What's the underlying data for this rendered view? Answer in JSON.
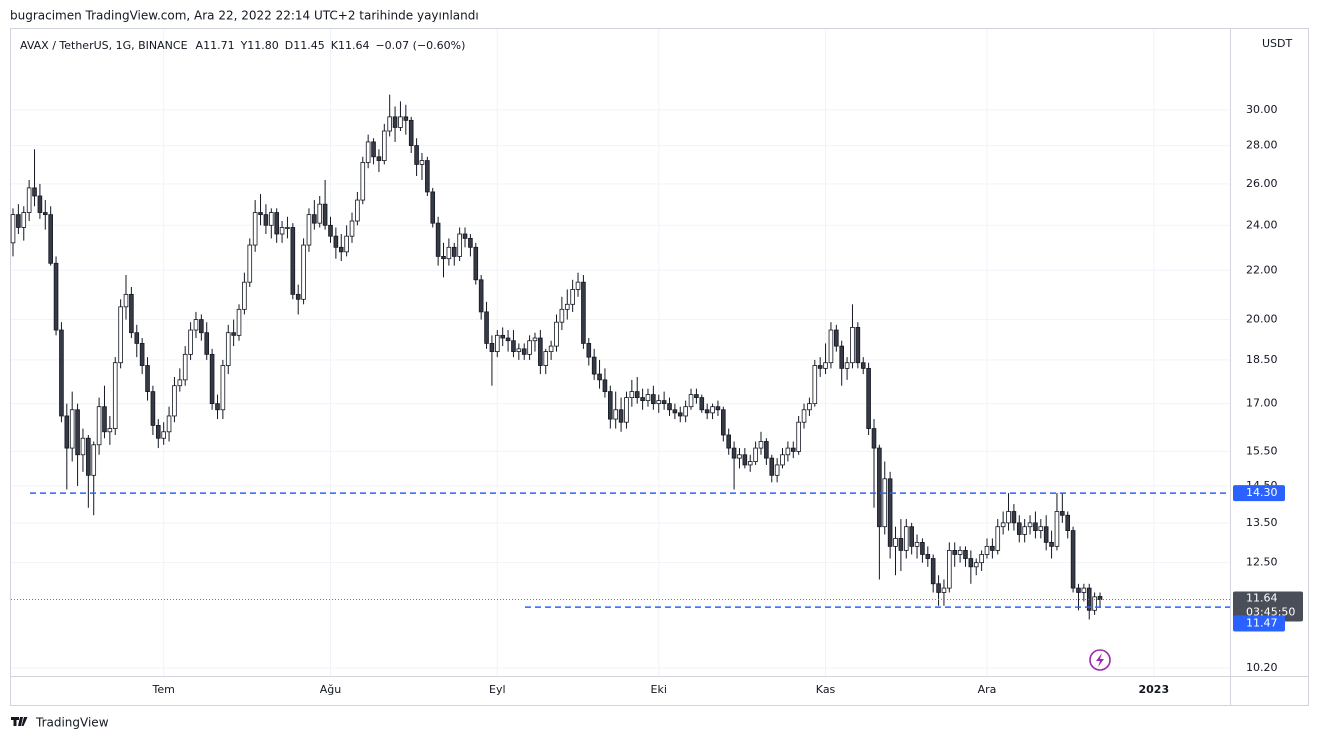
{
  "header": {
    "publisher": "bugracimen TradingView.com, Ara 22, 2022 22:14 UTC+2 tarihinde yayınlandı"
  },
  "footer": {
    "brand": "TradingView"
  },
  "chart_data": {
    "type": "candlestick",
    "legend": [
      "AVAX / TetherUS, 1G, BINANCE",
      "A11.71",
      "Y11.80",
      "D11.45",
      "K11.64",
      "−0.07 (−0.60%)"
    ],
    "y_unit": "USDT",
    "log_scale": true,
    "grid": true,
    "up_color": "#ffffff",
    "down_color": "#363a45",
    "border_color": "#131722",
    "ylim": [
      10.04,
      35.08
    ],
    "yticks": [
      {
        "value": 30,
        "label": "30.00"
      },
      {
        "value": 28,
        "label": "28.00"
      },
      {
        "value": 26,
        "label": "26.00"
      },
      {
        "value": 24,
        "label": "24.00"
      },
      {
        "value": 22,
        "label": "22.00"
      },
      {
        "value": 20,
        "label": "20.00"
      },
      {
        "value": 18.5,
        "label": "18.50"
      },
      {
        "value": 17,
        "label": "17.00"
      },
      {
        "value": 15.5,
        "label": "15.50"
      },
      {
        "value": 14.5,
        "label": "14.50"
      },
      {
        "value": 13.5,
        "label": "13.50"
      },
      {
        "value": 12.5,
        "label": "12.50"
      },
      {
        "value": 10.2,
        "label": "10.20"
      }
    ],
    "xticks": [
      {
        "value": 28,
        "label": "Tem"
      },
      {
        "value": 59,
        "label": "Ağu"
      },
      {
        "value": 90,
        "label": "Eyl"
      },
      {
        "value": 120,
        "label": "Eki"
      },
      {
        "value": 151,
        "label": "Kas"
      },
      {
        "value": 181,
        "label": "Ara"
      },
      {
        "value": 212,
        "label": "2023",
        "bold": true
      }
    ],
    "levels": [
      {
        "value": 14.3,
        "label": "14.30",
        "color": "#2962ff"
      },
      {
        "value": 11.47,
        "label": "11.47",
        "color": "#2962ff"
      }
    ],
    "last_price": {
      "value": 11.64,
      "label": "11.64",
      "countdown": "03:45:50"
    },
    "ohlc": [
      [
        23.2,
        24.8,
        22.6,
        24.5
      ],
      [
        24.5,
        25.0,
        23.6,
        23.9
      ],
      [
        23.9,
        24.9,
        23.3,
        24.6
      ],
      [
        24.6,
        26.2,
        24.2,
        25.8
      ],
      [
        25.8,
        27.8,
        24.9,
        25.4
      ],
      [
        25.4,
        26.0,
        24.3,
        24.6
      ],
      [
        24.6,
        25.2,
        23.8,
        24.5
      ],
      [
        24.5,
        24.9,
        22.2,
        22.3
      ],
      [
        22.3,
        22.6,
        19.4,
        19.6
      ],
      [
        19.6,
        19.9,
        16.4,
        16.6
      ],
      [
        16.6,
        17.0,
        14.4,
        15.6
      ],
      [
        15.6,
        17.4,
        15.2,
        16.8
      ],
      [
        16.8,
        17.0,
        14.5,
        15.4
      ],
      [
        15.4,
        16.2,
        14.9,
        15.9
      ],
      [
        15.9,
        16.0,
        13.9,
        14.8
      ],
      [
        14.8,
        15.8,
        13.7,
        15.7
      ],
      [
        15.7,
        17.2,
        15.4,
        16.9
      ],
      [
        16.9,
        17.6,
        15.9,
        16.1
      ],
      [
        16.1,
        16.6,
        15.7,
        16.2
      ],
      [
        16.2,
        18.6,
        16.0,
        18.4
      ],
      [
        18.4,
        20.8,
        18.2,
        20.5
      ],
      [
        20.5,
        21.8,
        20.0,
        21.0
      ],
      [
        21.0,
        21.3,
        19.3,
        19.5
      ],
      [
        19.5,
        19.8,
        18.6,
        19.1
      ],
      [
        19.1,
        19.3,
        18.0,
        18.3
      ],
      [
        18.3,
        18.6,
        17.1,
        17.4
      ],
      [
        17.4,
        17.6,
        16.0,
        16.3
      ],
      [
        16.3,
        16.5,
        15.6,
        15.9
      ],
      [
        15.9,
        16.4,
        15.7,
        16.1
      ],
      [
        16.1,
        16.9,
        15.8,
        16.6
      ],
      [
        16.6,
        17.9,
        16.4,
        17.6
      ],
      [
        17.6,
        18.2,
        17.4,
        17.8
      ],
      [
        17.8,
        19.0,
        17.6,
        18.7
      ],
      [
        18.7,
        19.9,
        18.5,
        19.6
      ],
      [
        19.6,
        20.3,
        19.3,
        20.0
      ],
      [
        20.0,
        20.2,
        19.2,
        19.5
      ],
      [
        19.5,
        19.9,
        18.5,
        18.7
      ],
      [
        18.7,
        18.9,
        16.8,
        17.0
      ],
      [
        17.0,
        17.3,
        16.5,
        16.8
      ],
      [
        16.8,
        18.5,
        16.5,
        18.3
      ],
      [
        18.3,
        19.8,
        18.0,
        19.5
      ],
      [
        19.5,
        20.0,
        19.0,
        19.4
      ],
      [
        19.4,
        20.6,
        19.2,
        20.4
      ],
      [
        20.4,
        21.9,
        20.2,
        21.5
      ],
      [
        21.5,
        23.4,
        21.3,
        23.1
      ],
      [
        23.1,
        25.2,
        22.8,
        24.6
      ],
      [
        24.6,
        25.5,
        24.0,
        24.5
      ],
      [
        24.5,
        25.0,
        23.6,
        24.0
      ],
      [
        24.0,
        24.8,
        23.4,
        24.6
      ],
      [
        24.6,
        24.8,
        23.2,
        23.6
      ],
      [
        23.6,
        24.2,
        23.2,
        23.9
      ],
      [
        23.9,
        24.4,
        23.4,
        23.9
      ],
      [
        23.9,
        24.1,
        20.8,
        21.0
      ],
      [
        21.0,
        21.4,
        20.2,
        20.8
      ],
      [
        20.8,
        23.4,
        20.6,
        23.1
      ],
      [
        23.1,
        24.8,
        22.8,
        24.5
      ],
      [
        24.5,
        25.2,
        23.8,
        24.1
      ],
      [
        24.1,
        25.4,
        23.9,
        25.0
      ],
      [
        25.0,
        26.2,
        23.8,
        24.0
      ],
      [
        24.0,
        24.4,
        23.2,
        23.5
      ],
      [
        23.5,
        23.9,
        22.5,
        23.0
      ],
      [
        23.0,
        23.6,
        22.4,
        22.8
      ],
      [
        22.8,
        24.0,
        22.6,
        23.5
      ],
      [
        23.5,
        24.6,
        23.2,
        24.2
      ],
      [
        24.2,
        25.6,
        24.0,
        25.2
      ],
      [
        25.2,
        27.4,
        25.0,
        27.1
      ],
      [
        27.1,
        28.6,
        26.8,
        28.2
      ],
      [
        28.2,
        28.4,
        27.0,
        27.4
      ],
      [
        27.4,
        27.8,
        26.6,
        27.2
      ],
      [
        27.2,
        29.2,
        27.0,
        28.8
      ],
      [
        28.8,
        30.9,
        28.5,
        29.6
      ],
      [
        29.6,
        30.2,
        28.2,
        29.0
      ],
      [
        29.0,
        30.5,
        28.8,
        29.6
      ],
      [
        29.6,
        30.3,
        28.6,
        29.4
      ],
      [
        29.4,
        29.6,
        27.6,
        28.0
      ],
      [
        28.0,
        28.4,
        26.4,
        27.0
      ],
      [
        27.0,
        27.6,
        26.2,
        27.2
      ],
      [
        27.2,
        27.4,
        25.4,
        25.6
      ],
      [
        25.6,
        25.8,
        23.9,
        24.1
      ],
      [
        24.1,
        24.4,
        22.2,
        22.6
      ],
      [
        22.6,
        23.2,
        21.7,
        22.5
      ],
      [
        22.5,
        23.4,
        22.2,
        23.0
      ],
      [
        23.0,
        23.2,
        22.2,
        22.6
      ],
      [
        22.6,
        23.9,
        22.4,
        23.6
      ],
      [
        23.6,
        23.9,
        23.0,
        23.4
      ],
      [
        23.4,
        23.6,
        22.6,
        23.0
      ],
      [
        23.0,
        23.2,
        21.4,
        21.6
      ],
      [
        21.6,
        21.8,
        20.0,
        20.3
      ],
      [
        20.3,
        20.7,
        18.9,
        19.1
      ],
      [
        19.1,
        19.4,
        17.6,
        18.8
      ],
      [
        18.8,
        19.6,
        18.6,
        19.4
      ],
      [
        19.4,
        19.7,
        19.0,
        19.3
      ],
      [
        19.3,
        19.6,
        18.8,
        19.2
      ],
      [
        19.2,
        19.6,
        18.6,
        18.8
      ],
      [
        18.8,
        19.1,
        18.5,
        18.9
      ],
      [
        18.9,
        19.1,
        18.5,
        18.7
      ],
      [
        18.7,
        19.4,
        18.5,
        19.2
      ],
      [
        19.2,
        19.5,
        18.8,
        19.3
      ],
      [
        19.3,
        19.6,
        18.0,
        18.3
      ],
      [
        18.3,
        18.9,
        18.0,
        18.8
      ],
      [
        18.8,
        19.2,
        18.5,
        19.0
      ],
      [
        19.0,
        20.2,
        18.8,
        19.9
      ],
      [
        19.9,
        20.9,
        19.6,
        20.4
      ],
      [
        20.4,
        21.2,
        20.0,
        20.6
      ],
      [
        20.6,
        21.6,
        20.3,
        21.2
      ],
      [
        21.2,
        21.9,
        20.9,
        21.5
      ],
      [
        21.5,
        21.8,
        18.9,
        19.1
      ],
      [
        19.1,
        19.3,
        18.3,
        18.6
      ],
      [
        18.6,
        18.9,
        17.8,
        18.0
      ],
      [
        18.0,
        18.5,
        17.5,
        17.8
      ],
      [
        17.8,
        18.2,
        17.2,
        17.4
      ],
      [
        17.4,
        17.6,
        16.2,
        16.5
      ],
      [
        16.5,
        17.4,
        16.2,
        16.8
      ],
      [
        16.8,
        17.2,
        16.1,
        16.4
      ],
      [
        16.4,
        17.4,
        16.2,
        17.2
      ],
      [
        17.2,
        17.8,
        16.9,
        17.4
      ],
      [
        17.4,
        17.9,
        17.0,
        17.2
      ],
      [
        17.2,
        17.5,
        16.8,
        17.1
      ],
      [
        17.1,
        17.5,
        16.9,
        17.3
      ],
      [
        17.3,
        17.6,
        16.8,
        17.0
      ],
      [
        17.0,
        17.3,
        16.7,
        17.1
      ],
      [
        17.1,
        17.4,
        16.8,
        17.0
      ],
      [
        17.0,
        17.2,
        16.6,
        16.8
      ],
      [
        16.8,
        17.0,
        16.5,
        16.7
      ],
      [
        16.7,
        16.9,
        16.4,
        16.6
      ],
      [
        16.6,
        17.1,
        16.4,
        16.9
      ],
      [
        16.9,
        17.5,
        16.8,
        17.3
      ],
      [
        17.3,
        17.5,
        17.0,
        17.2
      ],
      [
        17.2,
        17.3,
        16.7,
        16.8
      ],
      [
        16.8,
        17.0,
        16.5,
        16.7
      ],
      [
        16.7,
        17.0,
        16.5,
        16.9
      ],
      [
        16.9,
        17.1,
        16.6,
        16.8
      ],
      [
        16.8,
        16.9,
        15.8,
        16.0
      ],
      [
        16.0,
        16.2,
        15.4,
        15.6
      ],
      [
        15.6,
        15.8,
        14.4,
        15.3
      ],
      [
        15.3,
        15.6,
        15.0,
        15.4
      ],
      [
        15.4,
        15.6,
        15.0,
        15.1
      ],
      [
        15.1,
        15.4,
        14.9,
        15.2
      ],
      [
        15.2,
        15.8,
        15.1,
        15.6
      ],
      [
        15.6,
        16.1,
        15.4,
        15.8
      ],
      [
        15.8,
        15.9,
        15.1,
        15.3
      ],
      [
        15.3,
        15.4,
        14.6,
        14.8
      ],
      [
        14.8,
        15.3,
        14.6,
        15.1
      ],
      [
        15.1,
        15.6,
        15.0,
        15.4
      ],
      [
        15.4,
        15.8,
        15.2,
        15.6
      ],
      [
        15.6,
        15.8,
        15.3,
        15.5
      ],
      [
        15.5,
        16.6,
        15.4,
        16.4
      ],
      [
        16.4,
        17.0,
        16.2,
        16.8
      ],
      [
        16.8,
        17.2,
        16.6,
        17.0
      ],
      [
        17.0,
        18.5,
        16.9,
        18.3
      ],
      [
        18.3,
        18.6,
        17.9,
        18.2
      ],
      [
        18.2,
        19.1,
        18.0,
        18.4
      ],
      [
        18.4,
        19.9,
        18.2,
        19.6
      ],
      [
        19.6,
        19.8,
        18.8,
        19.0
      ],
      [
        19.0,
        19.2,
        17.6,
        18.2
      ],
      [
        18.2,
        18.6,
        17.8,
        18.4
      ],
      [
        18.4,
        20.6,
        18.2,
        19.7
      ],
      [
        19.7,
        19.9,
        18.2,
        18.4
      ],
      [
        18.4,
        18.6,
        18.0,
        18.2
      ],
      [
        18.2,
        18.4,
        16.0,
        16.2
      ],
      [
        16.2,
        16.5,
        13.9,
        15.6
      ],
      [
        15.6,
        15.7,
        12.1,
        13.4
      ],
      [
        13.4,
        15.2,
        13.2,
        14.7
      ],
      [
        14.7,
        14.9,
        12.6,
        12.9
      ],
      [
        12.9,
        13.4,
        12.2,
        13.1
      ],
      [
        13.1,
        13.6,
        12.3,
        12.8
      ],
      [
        12.8,
        13.6,
        12.6,
        13.4
      ],
      [
        13.4,
        13.5,
        12.7,
        12.9
      ],
      [
        12.9,
        13.2,
        12.6,
        13.0
      ],
      [
        13.0,
        13.1,
        12.5,
        12.7
      ],
      [
        12.7,
        12.9,
        12.4,
        12.6
      ],
      [
        12.6,
        12.7,
        11.8,
        12.0
      ],
      [
        12.0,
        12.2,
        11.5,
        11.8
      ],
      [
        11.8,
        12.1,
        11.5,
        11.9
      ],
      [
        11.9,
        13.0,
        11.8,
        12.8
      ],
      [
        12.8,
        13.0,
        12.4,
        12.7
      ],
      [
        12.7,
        12.9,
        12.5,
        12.8
      ],
      [
        12.8,
        12.9,
        12.4,
        12.6
      ],
      [
        12.6,
        12.8,
        12.0,
        12.4
      ],
      [
        12.4,
        12.6,
        12.2,
        12.5
      ],
      [
        12.5,
        12.8,
        12.3,
        12.7
      ],
      [
        12.7,
        13.1,
        12.6,
        12.9
      ],
      [
        12.9,
        13.1,
        12.6,
        12.8
      ],
      [
        12.8,
        13.6,
        12.7,
        13.4
      ],
      [
        13.4,
        13.8,
        13.2,
        13.5
      ],
      [
        13.5,
        14.3,
        13.3,
        13.8
      ],
      [
        13.8,
        14.0,
        13.3,
        13.5
      ],
      [
        13.5,
        13.7,
        13.0,
        13.2
      ],
      [
        13.2,
        13.6,
        13.0,
        13.4
      ],
      [
        13.4,
        13.7,
        13.2,
        13.5
      ],
      [
        13.5,
        13.8,
        13.1,
        13.3
      ],
      [
        13.3,
        13.6,
        13.1,
        13.4
      ],
      [
        13.4,
        13.7,
        12.8,
        13.0
      ],
      [
        13.0,
        13.3,
        12.6,
        12.9
      ],
      [
        12.9,
        14.3,
        12.8,
        13.8
      ],
      [
        13.8,
        14.3,
        13.5,
        13.7
      ],
      [
        13.7,
        13.8,
        13.1,
        13.3
      ],
      [
        13.3,
        13.4,
        11.8,
        11.9
      ],
      [
        11.9,
        12.0,
        11.4,
        11.8
      ],
      [
        11.8,
        12.0,
        11.6,
        11.9
      ],
      [
        11.9,
        12.0,
        11.2,
        11.4
      ],
      [
        11.4,
        11.8,
        11.3,
        11.7
      ],
      [
        11.71,
        11.8,
        11.45,
        11.64
      ]
    ]
  }
}
